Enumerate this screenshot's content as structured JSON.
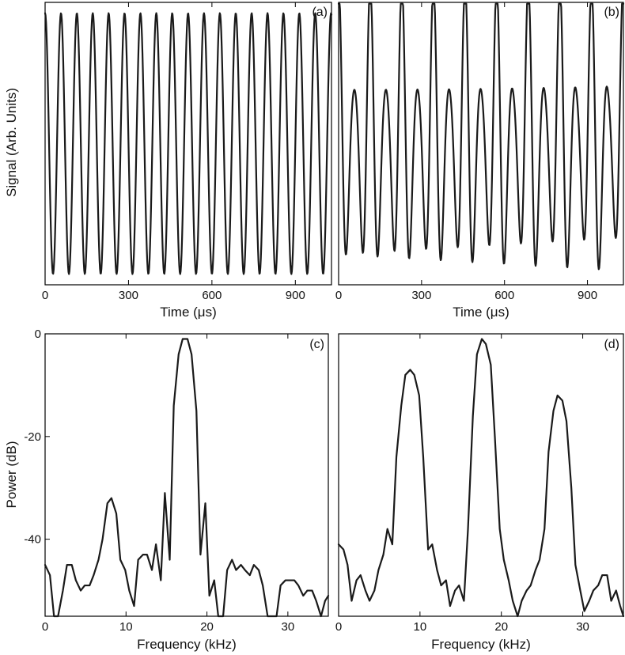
{
  "chart_data": [
    {
      "id": "a",
      "type": "line",
      "panel_label": "(a)",
      "xlabel": "Time (μs)",
      "ylabel": "Signal (Arb. Units)",
      "xlim": [
        0,
        1030
      ],
      "ylim": [
        -1.05,
        1.05
      ],
      "xticks": [
        0,
        300,
        600,
        900
      ],
      "yticks": [],
      "series": [
        {
          "model": "sinusoid",
          "freq_khz": 17.5,
          "amplitude": 0.97,
          "phase_deg": 90,
          "t_range_us": [
            0,
            1030
          ],
          "n_points": 600
        }
      ]
    },
    {
      "id": "b",
      "type": "line",
      "panel_label": "(b)",
      "xlabel": "Time (μs)",
      "ylabel": "",
      "xlim": [
        0,
        1030
      ],
      "ylim": [
        -1.05,
        1.05
      ],
      "xticks": [
        0,
        300,
        600,
        900
      ],
      "yticks": [],
      "series": [
        {
          "model": "amplitude_modulated",
          "carrier_khz": 17.5,
          "modulation_khz": 8.7,
          "carrier_amplitude": 0.8,
          "sideband_amplitude": 0.2,
          "phase_deg": 90,
          "t_range_us": [
            0,
            1030
          ],
          "n_points": 600
        }
      ]
    },
    {
      "id": "c",
      "type": "line",
      "panel_label": "(c)",
      "xlabel": "Frequency (kHz)",
      "ylabel": "Power (dB)",
      "xlim": [
        0,
        35
      ],
      "ylim": [
        -55,
        0
      ],
      "xticks": [
        0,
        10,
        20,
        30
      ],
      "yticks": [
        0,
        -20,
        -40
      ],
      "series": [
        {
          "x": [
            0,
            0.6,
            1.1,
            1.6,
            2.2,
            2.7,
            3.3,
            3.8,
            4.4,
            4.9,
            5.5,
            6.0,
            6.6,
            7.1,
            7.7,
            8.2,
            8.8,
            9.3,
            9.9,
            10.4,
            11.0,
            11.5,
            12.1,
            12.6,
            13.2,
            13.7,
            14.3,
            14.8,
            15.4,
            15.9,
            16.5,
            17.0,
            17.6,
            18.1,
            18.7,
            19.2,
            19.8,
            20.3,
            20.9,
            21.4,
            22.0,
            22.5,
            23.1,
            23.6,
            24.2,
            24.7,
            25.3,
            25.8,
            26.4,
            26.9,
            27.5,
            28.0,
            28.6,
            29.1,
            29.7,
            30.2,
            30.8,
            31.3,
            31.9,
            32.4,
            33.0,
            33.5,
            34.1,
            34.6,
            35.0
          ],
          "y": [
            -45,
            -47,
            -55,
            -55,
            -50,
            -45,
            -45,
            -48,
            -50,
            -49,
            -49,
            -47,
            -44,
            -40,
            -33,
            -32,
            -35,
            -44,
            -46,
            -50,
            -53,
            -44,
            -43,
            -43,
            -46,
            -41,
            -48,
            -31,
            -44,
            -14,
            -4,
            -1,
            -1,
            -4,
            -15,
            -43,
            -33,
            -51,
            -48,
            -55,
            -55,
            -46,
            -44,
            -46,
            -45,
            -46,
            -47,
            -45,
            -46,
            -49,
            -55,
            -55,
            -55,
            -49,
            -48,
            -48,
            -48,
            -49,
            -51,
            -50,
            -50,
            -52,
            -55,
            -52,
            -51
          ]
        }
      ]
    },
    {
      "id": "d",
      "type": "line",
      "panel_label": "(d)",
      "xlabel": "Frequency (kHz)",
      "ylabel": "",
      "xlim": [
        0,
        35
      ],
      "ylim": [
        -55,
        0
      ],
      "xticks": [
        0,
        10,
        20,
        30
      ],
      "yticks": [],
      "series": [
        {
          "x": [
            0,
            0.6,
            1.1,
            1.6,
            2.2,
            2.7,
            3.3,
            3.8,
            4.4,
            4.9,
            5.5,
            6.0,
            6.6,
            7.1,
            7.7,
            8.2,
            8.8,
            9.3,
            9.9,
            10.4,
            11.0,
            11.5,
            12.1,
            12.6,
            13.2,
            13.7,
            14.3,
            14.8,
            15.4,
            15.9,
            16.5,
            17.0,
            17.6,
            18.1,
            18.7,
            19.2,
            19.8,
            20.3,
            20.9,
            21.4,
            22.0,
            22.5,
            23.1,
            23.6,
            24.2,
            24.7,
            25.3,
            25.8,
            26.4,
            26.9,
            27.5,
            28.0,
            28.6,
            29.1,
            29.7,
            30.2,
            30.8,
            31.3,
            31.9,
            32.4,
            33.0,
            33.5,
            34.1,
            34.6,
            35.0
          ],
          "y": [
            -41,
            -42,
            -45,
            -52,
            -48,
            -47,
            -50,
            -52,
            -50,
            -46,
            -43,
            -38,
            -41,
            -24,
            -14,
            -8,
            -7,
            -8,
            -12,
            -24,
            -42,
            -41,
            -46,
            -49,
            -48,
            -53,
            -50,
            -49,
            -52,
            -38,
            -16,
            -4,
            -1,
            -2,
            -6,
            -20,
            -38,
            -44,
            -48,
            -52,
            -55,
            -52,
            -50,
            -49,
            -46,
            -44,
            -38,
            -23,
            -15,
            -12,
            -13,
            -17,
            -30,
            -45,
            -50,
            -54,
            -52,
            -50,
            -49,
            -47,
            -47,
            -52,
            -50,
            -53,
            -55
          ]
        }
      ]
    }
  ]
}
